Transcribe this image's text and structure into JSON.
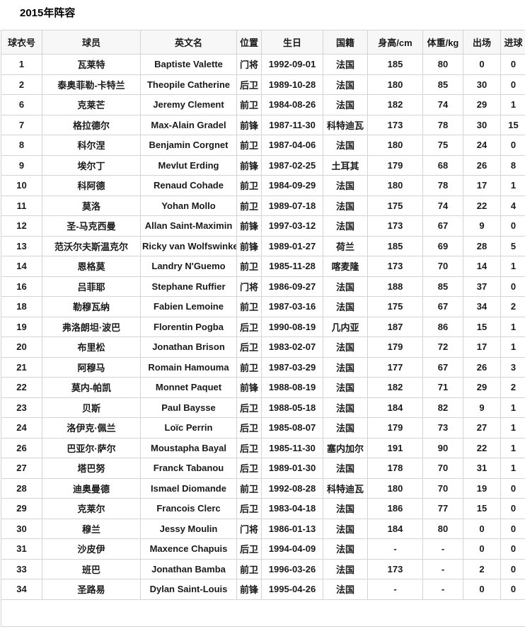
{
  "page": {
    "title": "2015年阵容"
  },
  "table": {
    "columns": [
      {
        "key": "jersey-number",
        "label": "球衣号"
      },
      {
        "key": "player-name",
        "label": "球员"
      },
      {
        "key": "english-name",
        "label": "英文名"
      },
      {
        "key": "position",
        "label": "位置"
      },
      {
        "key": "birthday",
        "label": "生日"
      },
      {
        "key": "nationality",
        "label": "国籍"
      },
      {
        "key": "height",
        "label": "身高/cm"
      },
      {
        "key": "weight",
        "label": "体重/kg"
      },
      {
        "key": "appearances",
        "label": "出场"
      },
      {
        "key": "goals",
        "label": "进球"
      }
    ],
    "rows": [
      [
        "1",
        "瓦莱特",
        "Baptiste Valette",
        "门将",
        "1992-09-01",
        "法国",
        "185",
        "80",
        "0",
        "0"
      ],
      [
        "2",
        "泰奥菲勒-卡特兰",
        "Theopile Catherine",
        "后卫",
        "1989-10-28",
        "法国",
        "180",
        "85",
        "30",
        "0"
      ],
      [
        "6",
        "克莱芒",
        "Jeremy Clement",
        "前卫",
        "1984-08-26",
        "法国",
        "182",
        "74",
        "29",
        "1"
      ],
      [
        "7",
        "格拉德尔",
        "Max-Alain Gradel",
        "前锋",
        "1987-11-30",
        "科特迪瓦",
        "173",
        "78",
        "30",
        "15"
      ],
      [
        "8",
        "科尔涅",
        "Benjamin Corgnet",
        "前卫",
        "1987-04-06",
        "法国",
        "180",
        "75",
        "24",
        "0"
      ],
      [
        "9",
        "埃尔丁",
        "Mevlut Erding",
        "前锋",
        "1987-02-25",
        "土耳其",
        "179",
        "68",
        "26",
        "8"
      ],
      [
        "10",
        "科阿德",
        "Renaud Cohade",
        "前卫",
        "1984-09-29",
        "法国",
        "180",
        "78",
        "17",
        "1"
      ],
      [
        "11",
        "莫洛",
        "Yohan Mollo",
        "前卫",
        "1989-07-18",
        "法国",
        "175",
        "74",
        "22",
        "4"
      ],
      [
        "12",
        "圣-马克西曼",
        "Allan Saint-Maximin",
        "前锋",
        "1997-03-12",
        "法国",
        "173",
        "67",
        "9",
        "0"
      ],
      [
        "13",
        "范沃尔夫斯温克尔",
        "Ricky van Wolfswinkel",
        "前锋",
        "1989-01-27",
        "荷兰",
        "185",
        "69",
        "28",
        "5"
      ],
      [
        "14",
        "恩格莫",
        "Landry N'Guemo",
        "前卫",
        "1985-11-28",
        "喀麦隆",
        "173",
        "70",
        "14",
        "1"
      ],
      [
        "16",
        "吕菲耶",
        "Stephane Ruffier",
        "门将",
        "1986-09-27",
        "法国",
        "188",
        "85",
        "37",
        "0"
      ],
      [
        "18",
        "勒穆瓦纳",
        "Fabien Lemoine",
        "前卫",
        "1987-03-16",
        "法国",
        "175",
        "67",
        "34",
        "2"
      ],
      [
        "19",
        "弗洛朗坦·波巴",
        "Florentin Pogba",
        "后卫",
        "1990-08-19",
        "几内亚",
        "187",
        "86",
        "15",
        "1"
      ],
      [
        "20",
        "布里松",
        "Jonathan Brison",
        "后卫",
        "1983-02-07",
        "法国",
        "179",
        "72",
        "17",
        "1"
      ],
      [
        "21",
        "阿穆马",
        "Romain Hamouma",
        "前卫",
        "1987-03-29",
        "法国",
        "177",
        "67",
        "26",
        "3"
      ],
      [
        "22",
        "莫内-帕凯",
        "Monnet Paquet",
        "前锋",
        "1988-08-19",
        "法国",
        "182",
        "71",
        "29",
        "2"
      ],
      [
        "23",
        "贝斯",
        "Paul Baysse",
        "后卫",
        "1988-05-18",
        "法国",
        "184",
        "82",
        "9",
        "1"
      ],
      [
        "24",
        "洛伊克·佩兰",
        "Loïc Perrin",
        "后卫",
        "1985-08-07",
        "法国",
        "179",
        "73",
        "27",
        "1"
      ],
      [
        "26",
        "巴亚尔·萨尔",
        "Moustapha Bayal",
        "后卫",
        "1985-11-30",
        "塞内加尔",
        "191",
        "90",
        "22",
        "1"
      ],
      [
        "27",
        "塔巴努",
        "Franck Tabanou",
        "后卫",
        "1989-01-30",
        "法国",
        "178",
        "70",
        "31",
        "1"
      ],
      [
        "28",
        "迪奥曼德",
        "Ismael Diomande",
        "前卫",
        "1992-08-28",
        "科特迪瓦",
        "180",
        "70",
        "19",
        "0"
      ],
      [
        "29",
        "克莱尔",
        "Francois Clerc",
        "后卫",
        "1983-04-18",
        "法国",
        "186",
        "77",
        "15",
        "0"
      ],
      [
        "30",
        "穆兰",
        "Jessy Moulin",
        "门将",
        "1986-01-13",
        "法国",
        "184",
        "80",
        "0",
        "0"
      ],
      [
        "31",
        "沙皮伊",
        "Maxence Chapuis",
        "后卫",
        "1994-04-09",
        "法国",
        "-",
        "-",
        "0",
        "0"
      ],
      [
        "33",
        "班巴",
        "Jonathan Bamba",
        "前卫",
        "1996-03-26",
        "法国",
        "173",
        "-",
        "2",
        "0"
      ],
      [
        "34",
        "圣路易",
        "Dylan Saint-Louis",
        "前锋",
        "1995-04-26",
        "法国",
        "-",
        "-",
        "0",
        "0"
      ]
    ]
  },
  "colors": {
    "header_bg": "#f7f7f7",
    "row_bg": "#ffffff",
    "border": "#d4d4d4",
    "text": "#1a1a1a"
  }
}
